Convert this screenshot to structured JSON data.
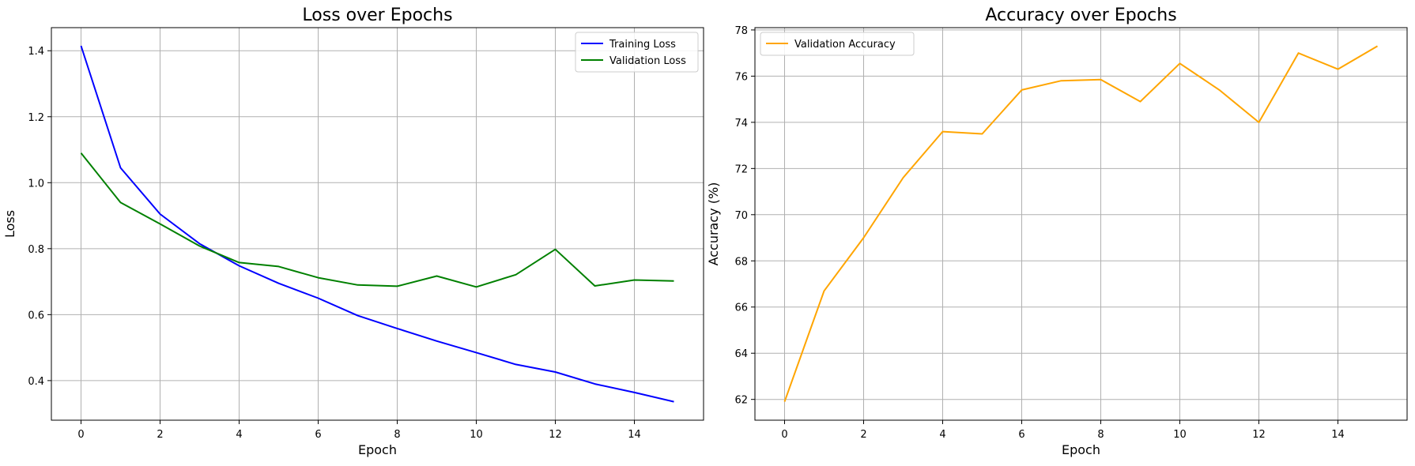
{
  "chart_data": [
    {
      "type": "line",
      "title": "Loss over Epochs",
      "xlabel": "Epoch",
      "ylabel": "Loss",
      "xlim": [
        -0.75,
        15.75
      ],
      "ylim": [
        0.28,
        1.47
      ],
      "xticks": [
        0,
        2,
        4,
        6,
        8,
        10,
        12,
        14
      ],
      "yticks": [
        0.4,
        0.6,
        0.8,
        1.0,
        1.2,
        1.4
      ],
      "ytick_labels": [
        "0.4",
        "0.6",
        "0.8",
        "1.0",
        "1.2",
        "1.4"
      ],
      "grid": true,
      "legend_position": "top-right",
      "x": [
        0,
        1,
        2,
        3,
        4,
        5,
        6,
        7,
        8,
        9,
        10,
        11,
        12,
        13,
        14,
        15
      ],
      "series": [
        {
          "name": "Training Loss",
          "color": "#0000ff",
          "values": [
            1.415,
            1.045,
            0.905,
            0.815,
            0.748,
            0.695,
            0.65,
            0.597,
            0.558,
            0.52,
            0.485,
            0.449,
            0.426,
            0.39,
            0.364,
            0.336
          ]
        },
        {
          "name": "Validation Loss",
          "color": "#008000",
          "values": [
            1.09,
            0.94,
            0.875,
            0.808,
            0.758,
            0.746,
            0.712,
            0.69,
            0.686,
            0.717,
            0.684,
            0.721,
            0.798,
            0.687,
            0.705,
            0.702
          ]
        }
      ]
    },
    {
      "type": "line",
      "title": "Accuracy over Epochs",
      "xlabel": "Epoch",
      "ylabel": "Accuracy (%)",
      "xlim": [
        -0.75,
        15.75
      ],
      "ylim": [
        61.1,
        78.1
      ],
      "xticks": [
        0,
        2,
        4,
        6,
        8,
        10,
        12,
        14
      ],
      "yticks": [
        62,
        64,
        66,
        68,
        70,
        72,
        74,
        76,
        78
      ],
      "ytick_labels": [
        "62",
        "64",
        "66",
        "68",
        "70",
        "72",
        "74",
        "76",
        "78"
      ],
      "grid": true,
      "legend_position": "top-left",
      "x": [
        0,
        1,
        2,
        3,
        4,
        5,
        6,
        7,
        8,
        9,
        10,
        11,
        12,
        13,
        14,
        15
      ],
      "series": [
        {
          "name": "Validation Accuracy",
          "color": "#ffa500",
          "values": [
            61.9,
            66.7,
            69.0,
            71.6,
            73.6,
            73.5,
            75.4,
            75.8,
            75.85,
            74.9,
            76.55,
            75.4,
            74.0,
            77.0,
            76.3,
            77.3
          ]
        }
      ]
    }
  ]
}
